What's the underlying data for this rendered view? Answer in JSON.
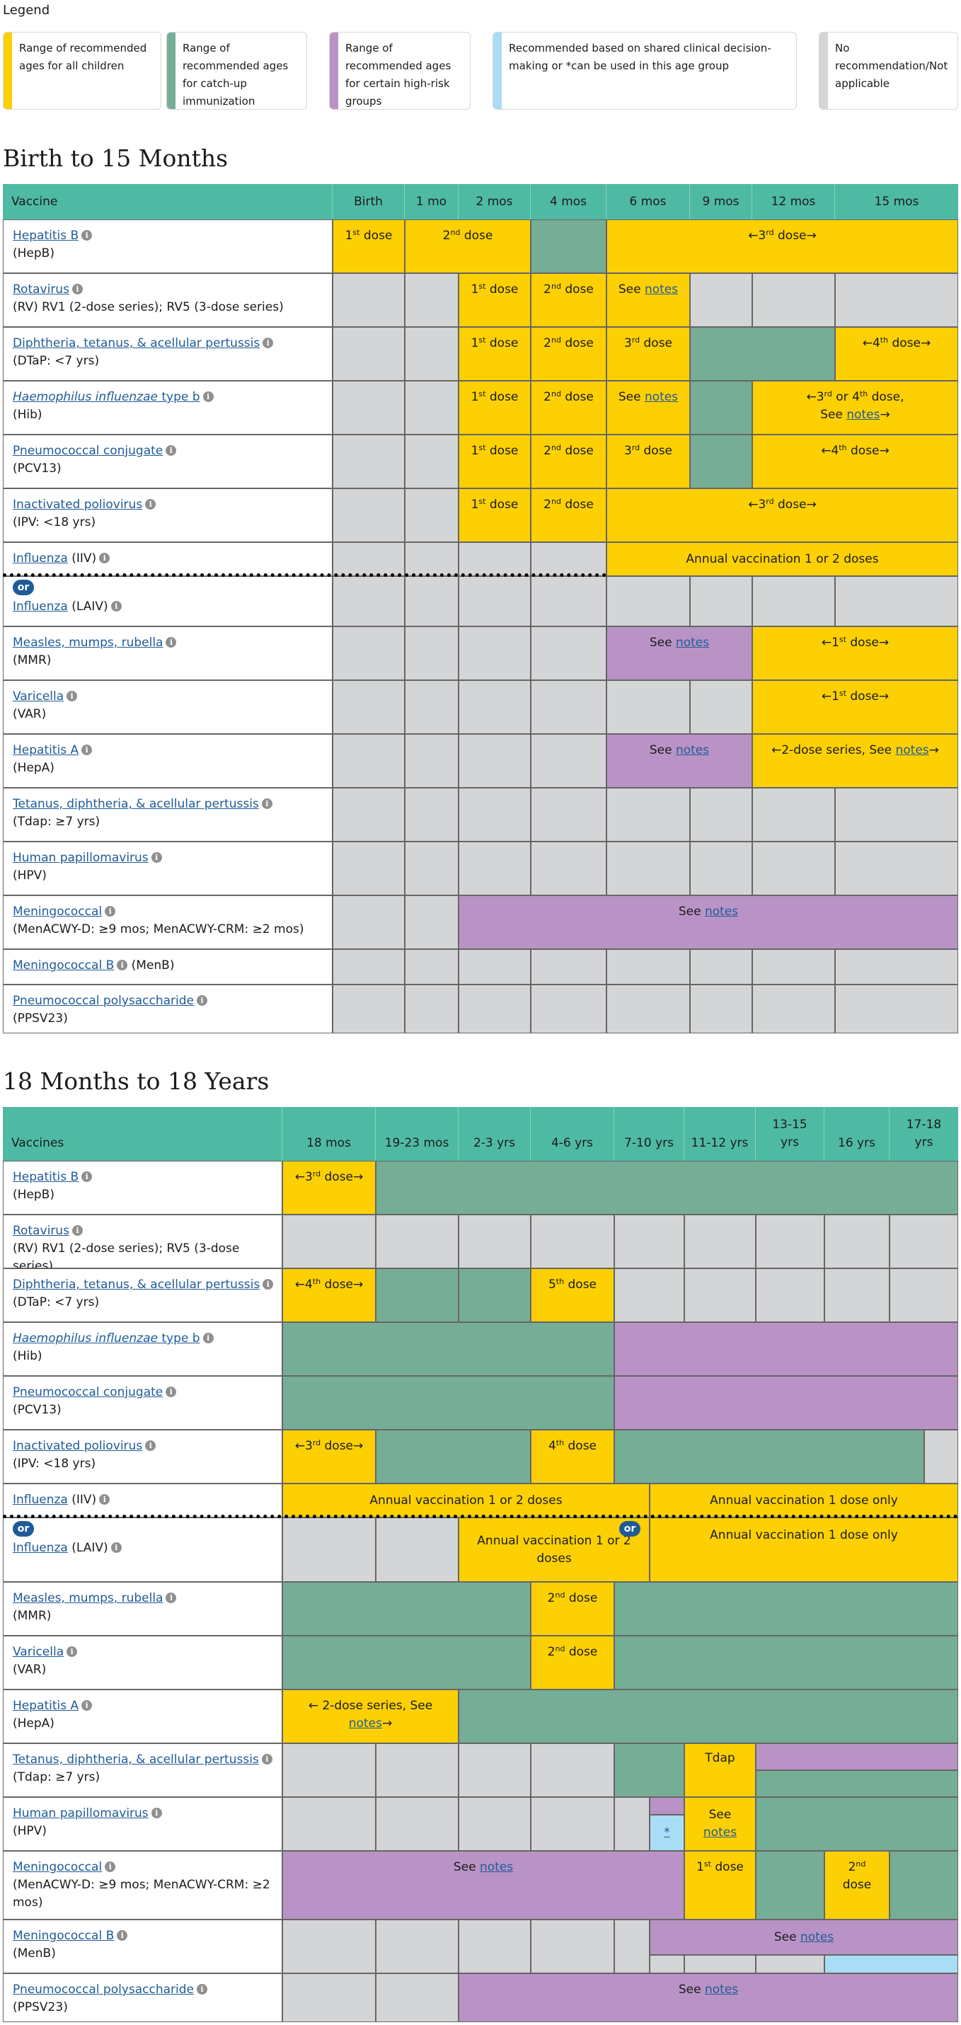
{
  "legend": {
    "title": "Legend",
    "items": [
      {
        "color": "#fdd003",
        "text": "Range of recommended ages for all children"
      },
      {
        "color": "#76ad97",
        "text": "Range of recommended ages for catch-up immunization"
      },
      {
        "color": "#b993c6",
        "text": "Range of recommended ages for certain high-risk groups"
      },
      {
        "color": "#a9dcf5",
        "text": "Recommended based on shared clinical decision-making or *can be used in this age group"
      },
      {
        "color": "#d4d5d7",
        "text": "No recommendation/Not applicable"
      }
    ]
  },
  "section1": {
    "title": "Birth to 15 Months",
    "vaccine_header": "Vaccine",
    "columns": [
      "Birth",
      "1 mo",
      "2 mos",
      "4 mos",
      "6 mos",
      "9 mos",
      "12 mos",
      "15 mos"
    ]
  },
  "section2": {
    "title": "18 Months to 18 Years",
    "vaccine_header": "Vaccines",
    "columns": [
      "18 mos",
      "19-23 mos",
      "2-3 yrs",
      "4-6 yrs",
      "7-10 yrs",
      "11-12 yrs",
      "13-15 yrs",
      "16 yrs",
      "17-18 yrs"
    ]
  },
  "vaccines": {
    "hepb": {
      "name": "Hepatitis B",
      "abbr": "(HepB)"
    },
    "rv": {
      "name": "Rotavirus",
      "abbr": "(RV) RV1 (2-dose series); RV5 (3-dose series)"
    },
    "dtap": {
      "name": "Diphtheria, tetanus, & acellular pertussis",
      "abbr": "(DTaP: <7 yrs)"
    },
    "hib": {
      "name_italic": "Haemophilus influenzae",
      "name_rest": " type b",
      "abbr": "(Hib)"
    },
    "pcv": {
      "name": "Pneumococcal conjugate",
      "abbr": "(PCV13)"
    },
    "ipv": {
      "name": "Inactivated poliovirus",
      "abbr": "(IPV: <18 yrs)"
    },
    "iiv": {
      "name": "Influenza",
      "abbr": " (IIV)"
    },
    "laiv": {
      "name": "Influenza",
      "abbr": " (LAIV)"
    },
    "mmr": {
      "name": "Measles, mumps, rubella",
      "abbr": "(MMR)"
    },
    "var": {
      "name": "Varicella",
      "abbr": "(VAR)"
    },
    "hepa": {
      "name": "Hepatitis A",
      "abbr": "(HepA)"
    },
    "tdap": {
      "name": "Tetanus, diphtheria, & acellular pertussis",
      "abbr": "(Tdap: ≥7 yrs)"
    },
    "hpv": {
      "name": "Human papillomavirus",
      "abbr": "(HPV)"
    },
    "menacwy": {
      "name": "Meningococcal",
      "abbr": "(MenACWY-D: ≥9 mos; MenACWY-CRM: ≥2 mos)"
    },
    "menb": {
      "name": "Meningococcal B",
      "abbr": " (MenB)"
    },
    "ppsv": {
      "name": "Pneumococcal polysaccharide",
      "abbr": "(PPSV23)"
    }
  },
  "labels": {
    "info": "i",
    "or": "or",
    "see": "See ",
    "notes": "notes",
    "dose1": "1",
    "dose2": "2",
    "dose3": "3",
    "dose4": "4",
    "dose5": "5",
    "st": "st",
    "nd": "nd",
    "rd": "rd",
    "th": "th",
    "dose": " dose",
    "arrow_l": "←",
    "arrow_r": "→",
    "arrow_l_sp": "← ",
    "or_word": " or ",
    "dose_comma": " dose,",
    "annual_12": "Annual vaccination 1 or 2 doses",
    "annual_1": "Annual vaccination 1 dose only",
    "two_dose_series": "2-dose series, See ",
    "tdap": "Tdap",
    "star": "*"
  }
}
